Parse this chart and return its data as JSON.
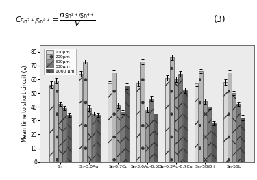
{
  "categories": [
    "Sn",
    "Sn-3.0Ag",
    "Sn-0.7Cu",
    "Sn-3.0Ag-0.5Cu",
    "Sn-0.3Ag-0.7Cu",
    "Sn-5BiB i",
    "Sn-5Sb"
  ],
  "xtick_labels": [
    "Sn",
    "Sn-3.0Ag",
    "Sn-0.7Cu",
    "Sn-3.0Ag-0.5Cu",
    "Sn-0.3Ag-0.7Cu",
    "Sn-5BiB i",
    "Sn-5Sb"
  ],
  "legend_labels": [
    "100μm",
    "200μm",
    "500μm",
    "800μm",
    "1000 μm"
  ],
  "values": [
    [
      56,
      59,
      42,
      39,
      34
    ],
    [
      64,
      73,
      39,
      35,
      34
    ],
    [
      57,
      65,
      41,
      36,
      55
    ],
    [
      57,
      73,
      38,
      46,
      35
    ],
    [
      61,
      76,
      60,
      64,
      52
    ],
    [
      57,
      66,
      44,
      40,
      28
    ],
    [
      58,
      65,
      50,
      42,
      32
    ]
  ],
  "errors": [
    [
      2.5,
      2.0,
      1.5,
      1.5,
      1.5
    ],
    [
      2.0,
      1.5,
      2.0,
      1.5,
      1.5
    ],
    [
      1.5,
      1.5,
      2.0,
      1.5,
      2.0
    ],
    [
      2.0,
      2.0,
      2.0,
      2.0,
      1.5
    ],
    [
      2.0,
      2.0,
      2.0,
      2.0,
      2.0
    ],
    [
      2.0,
      1.5,
      2.0,
      1.5,
      1.5
    ],
    [
      2.0,
      1.5,
      1.5,
      1.5,
      2.0
    ]
  ],
  "ylim": [
    0,
    85
  ],
  "yticks": [
    0,
    10,
    20,
    30,
    40,
    50,
    60,
    70,
    80
  ],
  "ylabel": "Mean time to short circuit (s)",
  "bar_colors": [
    "#d8d8d8",
    "#b8b8b8",
    "#989898",
    "#787878",
    "#585858"
  ],
  "hatches": [
    "/",
    ".",
    "x",
    "//",
    "\\\\"
  ],
  "eq_number": "(3)"
}
